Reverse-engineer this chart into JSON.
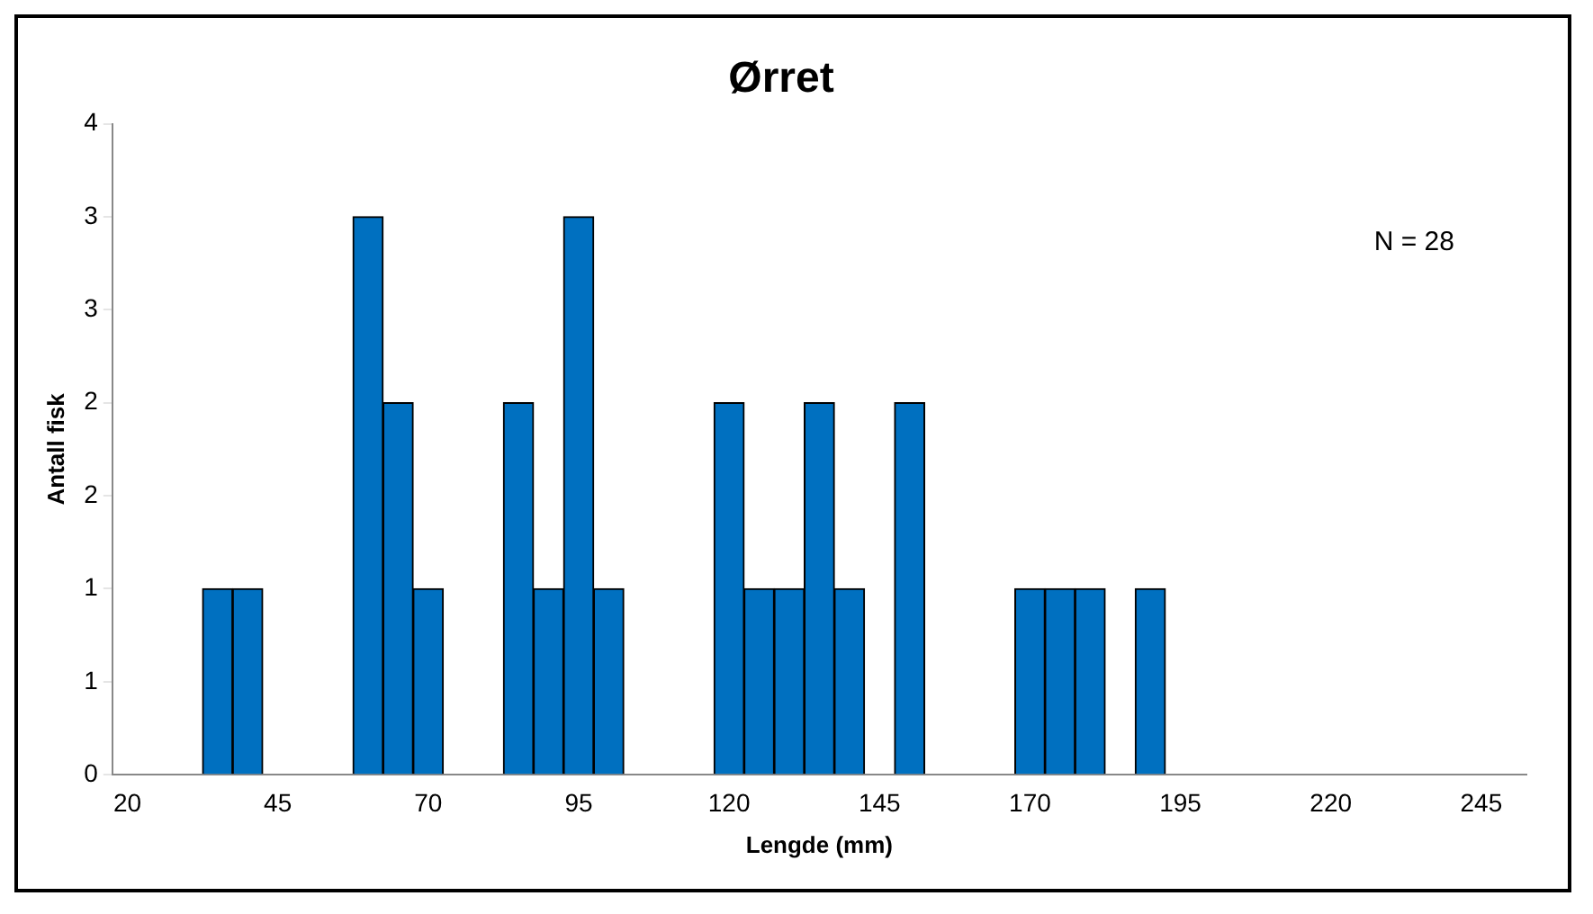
{
  "chart_data": {
    "type": "bar",
    "title": "Ørret",
    "xlabel": "Lengde (mm)",
    "ylabel": "Antall fisk",
    "categories": [
      "20",
      null,
      null,
      null,
      null,
      "45",
      null,
      null,
      null,
      null,
      "70",
      null,
      null,
      null,
      null,
      "95",
      null,
      null,
      null,
      null,
      "120",
      null,
      null,
      null,
      null,
      "145",
      null,
      null,
      null,
      null,
      "170",
      null,
      null,
      null,
      null,
      "195",
      null,
      null,
      null,
      null,
      "220",
      null,
      null,
      null,
      null,
      "245",
      null
    ],
    "values": [
      0,
      0,
      0,
      1,
      1,
      0,
      0,
      0,
      3,
      2,
      1,
      0,
      0,
      2,
      1,
      3,
      1,
      0,
      0,
      0,
      2,
      1,
      1,
      2,
      1,
      0,
      2,
      0,
      0,
      0,
      1,
      1,
      1,
      0,
      1,
      0,
      0,
      0,
      0,
      0,
      0,
      0,
      0,
      0,
      0,
      0,
      0
    ],
    "color": "#0070c0",
    "ylim": [
      0,
      3.5
    ],
    "yticks": [
      0,
      {
        "value": 0.5,
        "label": "1"
      },
      1,
      {
        "value": 1.5,
        "label": "2"
      },
      2,
      {
        "value": 2.5,
        "label": "3"
      },
      3,
      {
        "value": 3.5,
        "label": "4"
      }
    ],
    "grid": false,
    "annotations": [
      "N = 28"
    ]
  }
}
